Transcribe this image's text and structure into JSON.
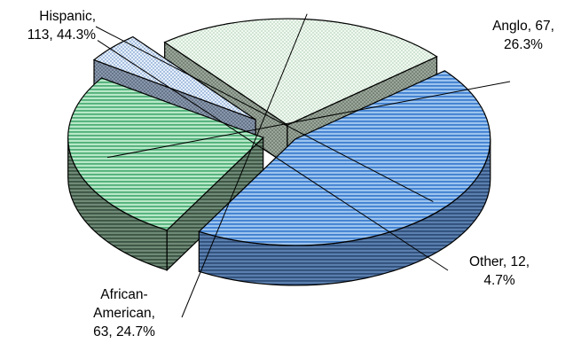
{
  "chart_data": {
    "type": "pie",
    "variant": "3d-exploded",
    "slices": [
      {
        "name": "Hispanic",
        "value": 113,
        "percent": "44.3%",
        "label_line1": "Hispanic,",
        "label_line2": "113, 44.3%",
        "color": "#5b9bd5",
        "side_color": "#3d5f8a",
        "pattern": "horizontal-stripes"
      },
      {
        "name": "Anglo",
        "value": 67,
        "percent": "26.3%",
        "label_line1": "Anglo, 67,",
        "label_line2": "26.3%",
        "color": "#7fcfa0",
        "side_color": "#4f6b58",
        "pattern": "horizontal-stripes"
      },
      {
        "name": "Other",
        "value": 12,
        "percent": "4.7%",
        "label_line1": "Other, 12,",
        "label_line2": "4.7%",
        "color": "#cfe0f5",
        "side_color": "#6a7a92",
        "pattern": "dots"
      },
      {
        "name": "African-American",
        "value": 63,
        "percent": "24.7%",
        "label_line1": "African-",
        "label_line2": "American,",
        "label_line3": "63, 24.7%",
        "color": "#e2f2e2",
        "side_color": "#7d8d7d",
        "pattern": "dots"
      }
    ]
  }
}
